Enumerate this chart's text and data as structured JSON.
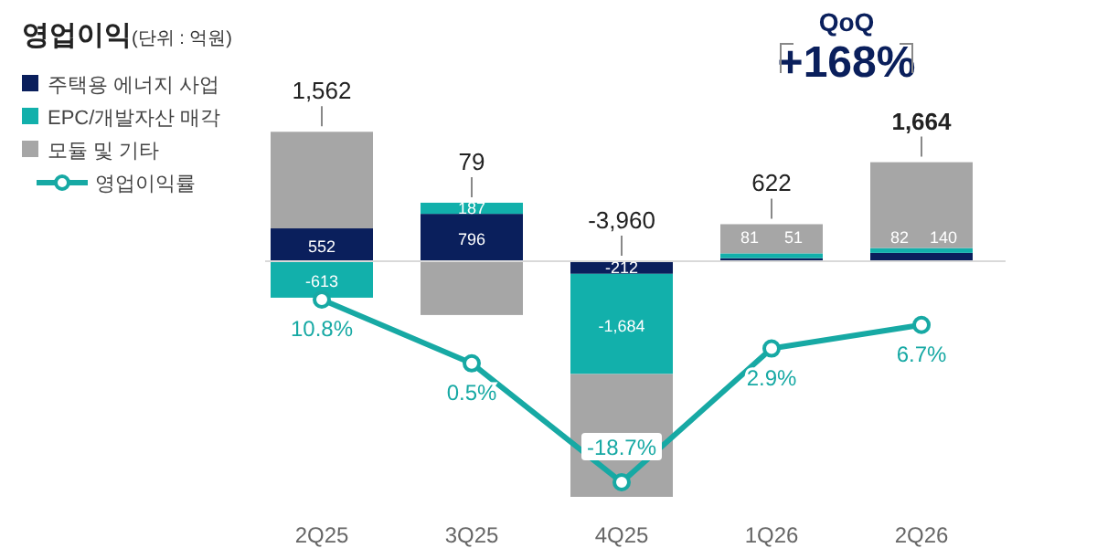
{
  "chart_data": {
    "type": "bar",
    "title": "영업이익",
    "subtitle": "(단위 : 억원)",
    "stacked": true,
    "legend": "top left",
    "tick_labels": "x",
    "grid": false,
    "categories": [
      "2Q25",
      "3Q25",
      "4Q25",
      "1Q26",
      "2Q26"
    ],
    "series": [
      {
        "name": "주택용 에너지 사업",
        "color": "#0a1f5c",
        "values": [
          552,
          796,
          -212,
          51,
          140
        ],
        "value_labels": [
          "552",
          "796",
          "-212",
          "51",
          "140"
        ]
      },
      {
        "name": "EPC/개발자산 매각",
        "color": "#12b0ab",
        "values": [
          -613,
          187,
          -1684,
          81,
          82
        ],
        "value_labels": [
          "-613",
          "187",
          "-1,684",
          "81",
          "82"
        ]
      },
      {
        "name": "모듈 및 기타",
        "color": "#a6a6a6",
        "values": [
          1623,
          -904,
          -2064,
          490,
          1442
        ]
      },
      {
        "name": "영업이익률",
        "type": "line",
        "axis": "y2",
        "color": "#17a9a4",
        "marker": "circle",
        "values": [
          10.8,
          0.5,
          -18.7,
          2.9,
          6.7
        ],
        "value_labels": [
          "10.8%",
          "0.5%",
          "-18.7%",
          "2.9%",
          "6.7%"
        ]
      }
    ],
    "totals": [
      "1,562",
      "79",
      "-3,960",
      "622",
      "1,664"
    ],
    "annotations": [
      "QoQ",
      "+168%"
    ]
  }
}
